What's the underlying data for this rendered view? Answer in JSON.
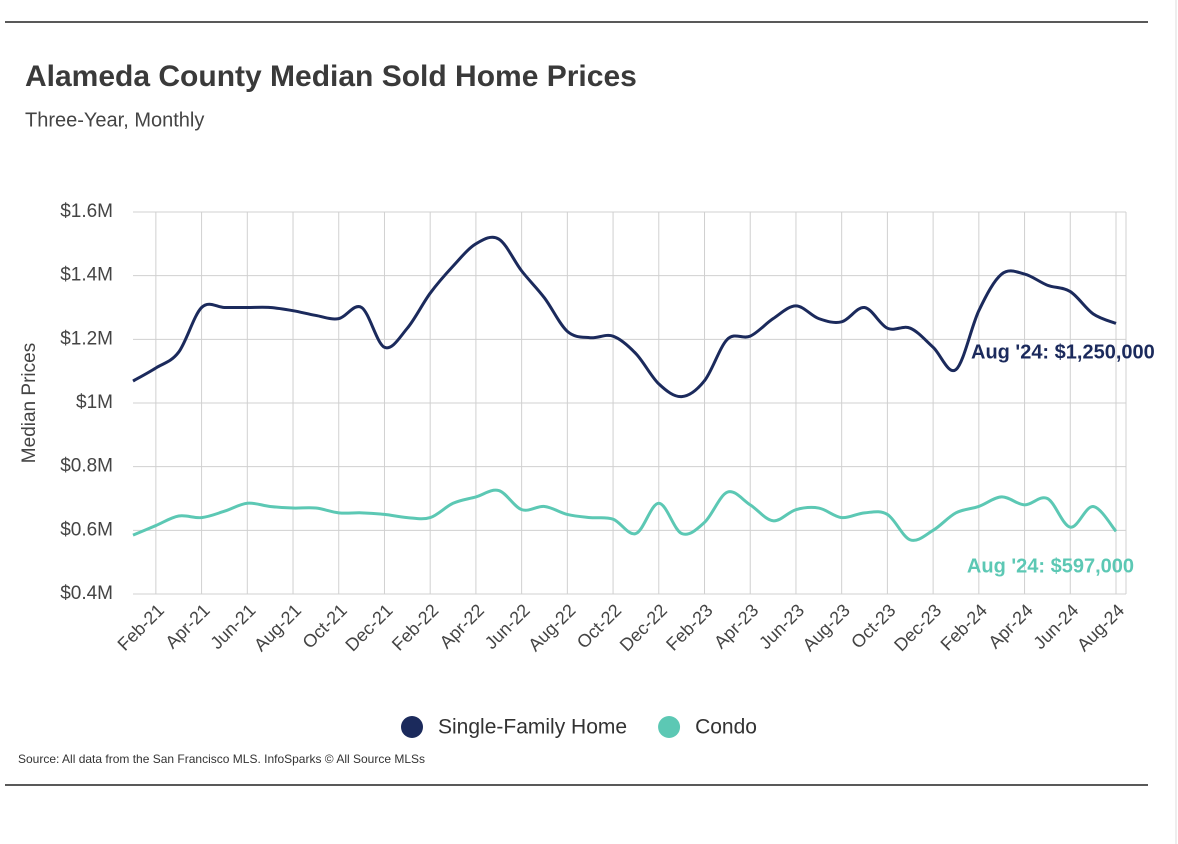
{
  "chart_data": {
    "type": "line",
    "title": "Alameda County Median Sold Home Prices",
    "subtitle": "Three-Year, Monthly",
    "y_label": "Median Prices",
    "source": "Source:  All data from the San Francisco MLS. InfoSparks © All Source MLSs",
    "categories": [
      null,
      "Feb-21",
      null,
      "Apr-21",
      null,
      "Jun-21",
      null,
      "Aug-21",
      null,
      "Oct-21",
      null,
      "Dec-21",
      null,
      "Feb-22",
      null,
      "Apr-22",
      null,
      "Jun-22",
      null,
      "Aug-22",
      null,
      "Oct-22",
      null,
      "Dec-22",
      null,
      "Feb-23",
      null,
      "Apr-23",
      null,
      "Jun-23",
      null,
      "Aug-23",
      null,
      "Oct-23",
      null,
      "Dec-23",
      null,
      "Feb-24",
      null,
      "Apr-24",
      null,
      "Jun-24",
      null,
      "Aug-24"
    ],
    "series": [
      {
        "name": "Single-Family Home",
        "color": "#1b2a5c",
        "values": [
          1069000,
          1110000,
          1160000,
          1300000,
          1300000,
          1300000,
          1300000,
          1290000,
          1275000,
          1265000,
          1300000,
          1175000,
          1235000,
          1345000,
          1430000,
          1500000,
          1515000,
          1415000,
          1330000,
          1225000,
          1205000,
          1210000,
          1155000,
          1060000,
          1020000,
          1070000,
          1200000,
          1210000,
          1265000,
          1305000,
          1265000,
          1255000,
          1300000,
          1235000,
          1235000,
          1175000,
          1105000,
          1290000,
          1405000,
          1405000,
          1370000,
          1350000,
          1280000,
          1250000
        ]
      },
      {
        "name": "Condo",
        "color": "#5cc8b4",
        "values": [
          585000,
          615000,
          645000,
          640000,
          660000,
          685000,
          675000,
          670000,
          670000,
          655000,
          655000,
          650000,
          640000,
          640000,
          685000,
          705000,
          725000,
          665000,
          675000,
          650000,
          640000,
          635000,
          590000,
          685000,
          590000,
          625000,
          720000,
          680000,
          630000,
          665000,
          670000,
          640000,
          655000,
          650000,
          570000,
          600000,
          655000,
          675000,
          705000,
          680000,
          700000,
          610000,
          675000,
          597000
        ]
      }
    ],
    "annotations": [
      {
        "text": "Aug '24: $1,250,000",
        "series": 0
      },
      {
        "text": "Aug '24: $597,000",
        "series": 1
      }
    ],
    "ylim": [
      400000,
      1600000
    ],
    "yticks": [
      {
        "value": 400000,
        "label": "$0.4M"
      },
      {
        "value": 600000,
        "label": "$0.6M"
      },
      {
        "value": 800000,
        "label": "$0.8M"
      },
      {
        "value": 1000000,
        "label": "$1M"
      },
      {
        "value": 1200000,
        "label": "$1.2M"
      },
      {
        "value": 1400000,
        "label": "$1.4M"
      },
      {
        "value": 1600000,
        "label": "$1.6M"
      }
    ],
    "grid": true,
    "legend": "bottom"
  }
}
